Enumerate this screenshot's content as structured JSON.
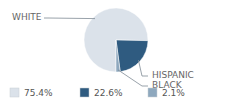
{
  "chart_data": {
    "type": "pie",
    "categories": [
      "WHITE",
      "HISPANIC",
      "BLACK"
    ],
    "values": [
      75.4,
      22.6,
      2.1
    ],
    "value_labels": [
      "75.4%",
      "22.6%",
      "2.1%"
    ],
    "colors": [
      "#dbe2ea",
      "#2f5b80",
      "#8ea8be"
    ],
    "legend": "bottom"
  }
}
